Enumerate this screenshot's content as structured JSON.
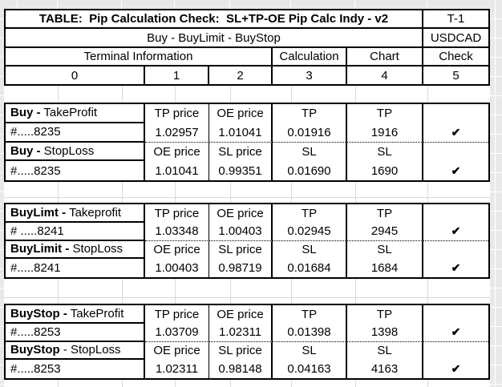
{
  "check_glyph": "✔",
  "header": {
    "title": "TABLE:  Pip Calculation Check:  SL+TP-OE Pip Calc Indy - v2",
    "tag": "T-1",
    "subtitle": "Buy - BuyLimit - BuyStop",
    "symbol": "USDCAD",
    "col_groups": [
      "Terminal Information",
      "Calculation",
      "Chart",
      "Check"
    ],
    "col_numbers": [
      "0",
      "1",
      "2",
      "3",
      "4",
      "5"
    ]
  },
  "blocks": [
    {
      "rows": [
        {
          "type": "header",
          "label_bold": "Buy -",
          "label_rest": " TakeProfit",
          "c1": "TP price",
          "c2": "OE price",
          "c3": "TP",
          "c4": "TP",
          "check": false
        },
        {
          "type": "data",
          "label": "#.....8235",
          "c1": "1.02957",
          "c2": "1.01041",
          "c3": "0.01916",
          "c4": "1916",
          "check": true
        },
        {
          "type": "header",
          "label_bold": "Buy -",
          "label_rest": " StopLoss",
          "c1": "OE price",
          "c2": "SL price",
          "c3": "SL",
          "c4": "SL",
          "check": false
        },
        {
          "type": "data",
          "label": "#.....8235",
          "c1": "1.01041",
          "c2": "0.99351",
          "c3": "0.01690",
          "c4": "1690",
          "check": true
        }
      ]
    },
    {
      "rows": [
        {
          "type": "header",
          "label_bold": "BuyLimt -",
          "label_rest": " Takeprofit",
          "c1": "TP price",
          "c2": "OE price",
          "c3": "TP",
          "c4": "TP",
          "check": false
        },
        {
          "type": "data",
          "label": "# .....8241",
          "c1": "1.03348",
          "c2": "1.00403",
          "c3": "0.02945",
          "c4": "2945",
          "check": true
        },
        {
          "type": "header",
          "label_bold": "BuyLimit -",
          "label_rest": " StopLoss",
          "c1": "OE price",
          "c2": "SL price",
          "c3": "SL",
          "c4": "SL",
          "check": false
        },
        {
          "type": "data",
          "label": "#.....8241",
          "c1": "1.00403",
          "c2": "0.98719",
          "c3": "0.01684",
          "c4": "1684",
          "check": true
        }
      ]
    },
    {
      "rows": [
        {
          "type": "header",
          "label_bold": "BuyStop -",
          "label_rest": " TakeProfit",
          "c1": "TP price",
          "c2": "OE price",
          "c3": "TP",
          "c4": "TP",
          "check": false
        },
        {
          "type": "data",
          "label": "#.....8253",
          "c1": "1.03709",
          "c2": "1.02311",
          "c3": "0.01398",
          "c4": "1398",
          "check": true
        },
        {
          "type": "header",
          "label_bold": "BuyStop",
          "label_rest": " - StopLoss",
          "c1": "OE price",
          "c2": "SL price",
          "c3": "SL",
          "c4": "SL",
          "check": false
        },
        {
          "type": "data",
          "label": "#.....8253",
          "c1": "1.02311",
          "c2": "0.98148",
          "c3": "0.04163",
          "c4": "4163",
          "check": true
        }
      ]
    }
  ]
}
